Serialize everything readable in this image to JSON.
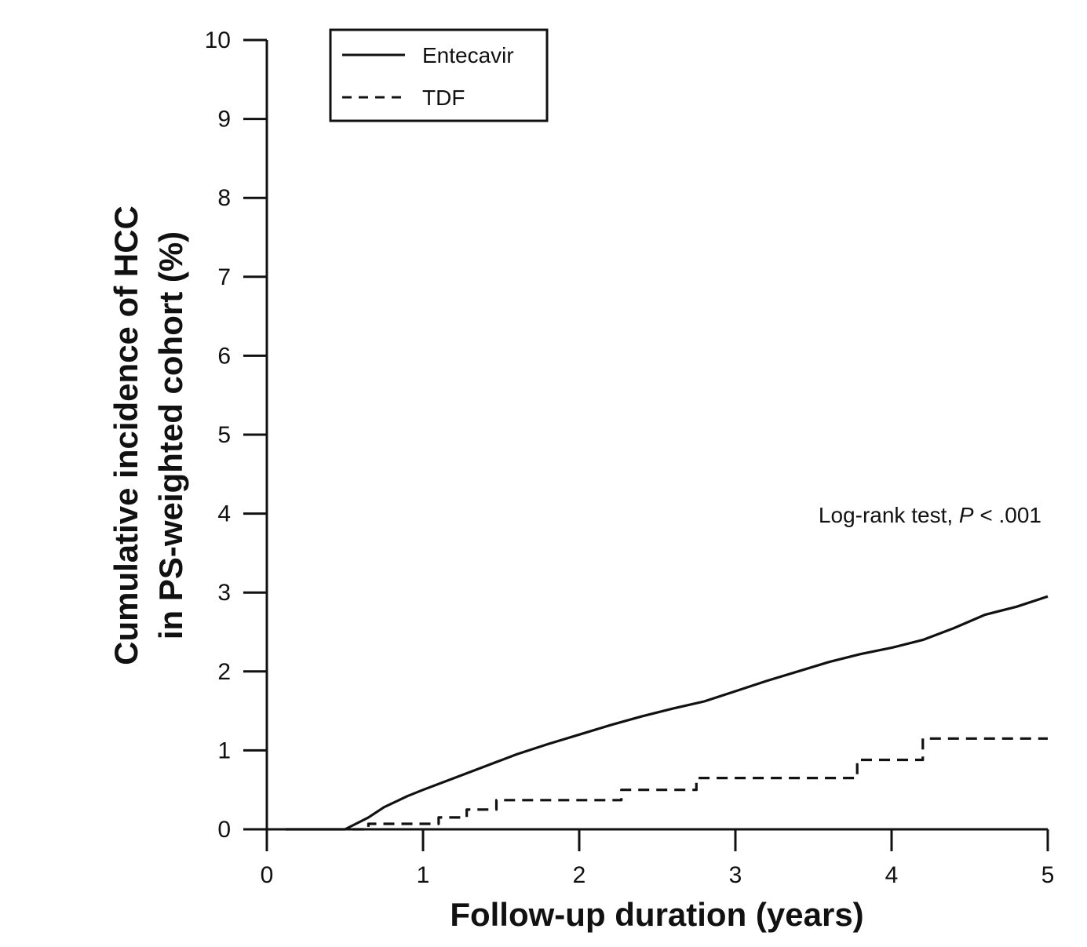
{
  "chart_data": {
    "type": "line",
    "xlabel": "Follow-up duration (years)",
    "ylabel_line1": "Cumulative incidence of HCC",
    "ylabel_line2": "in PS-weighted cohort (%)",
    "xlim": [
      0,
      5
    ],
    "ylim": [
      0,
      10
    ],
    "x_ticks": [
      "0",
      "1",
      "2",
      "3",
      "4",
      "5"
    ],
    "y_ticks": [
      "0",
      "1",
      "2",
      "3",
      "4",
      "5",
      "6",
      "7",
      "8",
      "9",
      "10"
    ],
    "grid": false,
    "legend_position": "top-left",
    "annotation": {
      "prefix": "Log-rank test, ",
      "p_symbol": "P",
      "suffix": " < .001"
    },
    "series": [
      {
        "name": "Entecavir",
        "style": "solid",
        "color": "#111111",
        "x": [
          0.12,
          0.5,
          0.55,
          0.65,
          0.75,
          0.9,
          1.0,
          1.2,
          1.4,
          1.6,
          1.8,
          2.0,
          2.2,
          2.4,
          2.6,
          2.8,
          3.0,
          3.2,
          3.4,
          3.6,
          3.8,
          4.0,
          4.2,
          4.4,
          4.6,
          4.8,
          5.0
        ],
        "y": [
          0.0,
          0.0,
          0.05,
          0.15,
          0.28,
          0.42,
          0.5,
          0.65,
          0.8,
          0.95,
          1.08,
          1.2,
          1.32,
          1.43,
          1.53,
          1.62,
          1.75,
          1.88,
          2.0,
          2.12,
          2.22,
          2.3,
          2.4,
          2.55,
          2.72,
          2.82,
          2.95
        ]
      },
      {
        "name": "TDF",
        "style": "dashed",
        "color": "#111111",
        "step": true,
        "x": [
          0.55,
          0.65,
          1.1,
          1.28,
          1.47,
          2.27,
          2.75,
          3.78,
          4.2,
          5.0
        ],
        "y": [
          0.0,
          0.07,
          0.15,
          0.25,
          0.37,
          0.5,
          0.65,
          0.88,
          1.15,
          1.15
        ]
      }
    ]
  }
}
